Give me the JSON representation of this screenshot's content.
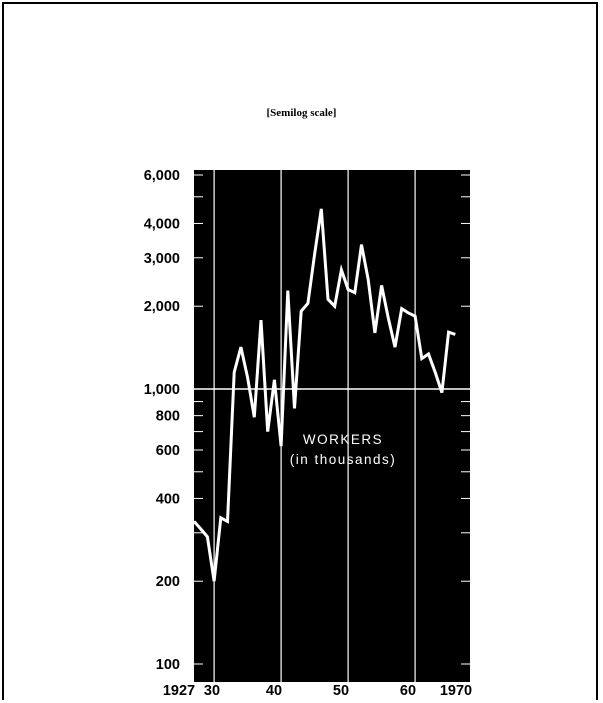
{
  "subtitle": "[Semilog scale]",
  "chart_data": {
    "type": "line",
    "scale": "log",
    "xlim": [
      1927,
      1970
    ],
    "ylim": [
      100,
      6000
    ],
    "y_tick_labels": [
      {
        "value": 6000,
        "label": "6,000"
      },
      {
        "value": 4000,
        "label": "4,000"
      },
      {
        "value": 3000,
        "label": "3,000"
      },
      {
        "value": 2000,
        "label": "2,000"
      },
      {
        "value": 1000,
        "label": "1,000"
      },
      {
        "value": 800,
        "label": "800"
      },
      {
        "value": 600,
        "label": "600"
      },
      {
        "value": 400,
        "label": "400"
      },
      {
        "value": 200,
        "label": "200"
      },
      {
        "value": 100,
        "label": "100"
      }
    ],
    "x_tick_labels": [
      {
        "value": 1927,
        "label": "1927"
      },
      {
        "value": 1930,
        "label": "30"
      },
      {
        "value": 1940,
        "label": "40"
      },
      {
        "value": 1950,
        "label": "50"
      },
      {
        "value": 1960,
        "label": "60"
      },
      {
        "value": 1970,
        "label": "1970"
      }
    ],
    "annotation_lines": [
      "WORKERS",
      "(in thousands)"
    ],
    "background": "#000000",
    "line_color": "#ffffff",
    "series": [
      {
        "x": [
          1927,
          1928,
          1929,
          1930,
          1931,
          1932,
          1933,
          1934,
          1935,
          1936,
          1937,
          1938,
          1939,
          1940,
          1941,
          1942,
          1943,
          1944,
          1945,
          1946,
          1947,
          1948,
          1949,
          1950,
          1951,
          1952,
          1953,
          1954,
          1955,
          1956,
          1957,
          1958,
          1959,
          1960,
          1961,
          1962,
          1963,
          1964,
          1965,
          1966
        ],
        "y": [
          330,
          310,
          290,
          200,
          340,
          330,
          1150,
          1420,
          1100,
          790,
          1780,
          700,
          1080,
          620,
          2280,
          850,
          1920,
          2050,
          3090,
          4520,
          2120,
          2000,
          2710,
          2300,
          2240,
          3350,
          2500,
          1600,
          2380,
          1810,
          1420,
          1960,
          1890,
          1840,
          1290,
          1340,
          1150,
          970,
          1610,
          1580
        ]
      }
    ]
  }
}
